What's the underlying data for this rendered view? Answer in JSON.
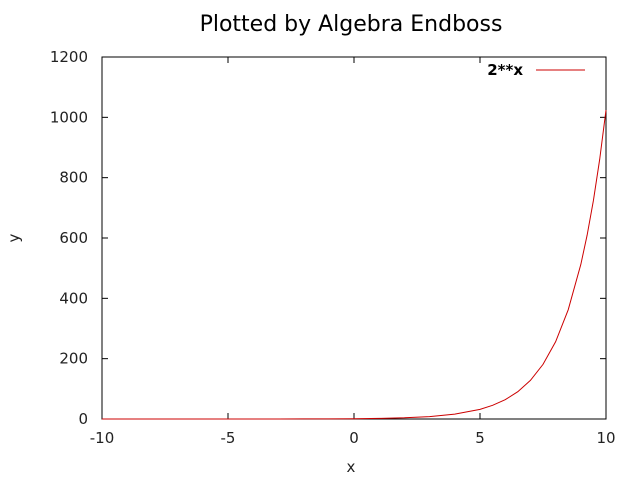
{
  "chart_data": {
    "type": "line",
    "title": "Plotted by Algebra Endboss",
    "xlabel": "x",
    "ylabel": "y",
    "xlim": [
      -10,
      10
    ],
    "ylim": [
      0,
      1200
    ],
    "xticks": [
      -10,
      -5,
      0,
      5,
      10
    ],
    "yticks": [
      0,
      200,
      400,
      600,
      800,
      1000,
      1200
    ],
    "grid": false,
    "legend_position": "top-right",
    "series": [
      {
        "name": "2**x",
        "color": "#cc0000",
        "x": [
          -10,
          -9,
          -8,
          -7,
          -6,
          -5,
          -4,
          -3,
          -2,
          -1,
          0,
          1,
          2,
          3,
          4,
          5,
          5.5,
          6,
          6.5,
          7,
          7.5,
          8,
          8.5,
          9,
          9.25,
          9.5,
          9.75,
          10
        ],
        "y": [
          0.001,
          0.002,
          0.004,
          0.008,
          0.016,
          0.031,
          0.063,
          0.125,
          0.25,
          0.5,
          1,
          2,
          4,
          8,
          16,
          32,
          45.3,
          64,
          90.5,
          128,
          181,
          256,
          362,
          512,
          609,
          724,
          861,
          1024
        ]
      }
    ]
  }
}
